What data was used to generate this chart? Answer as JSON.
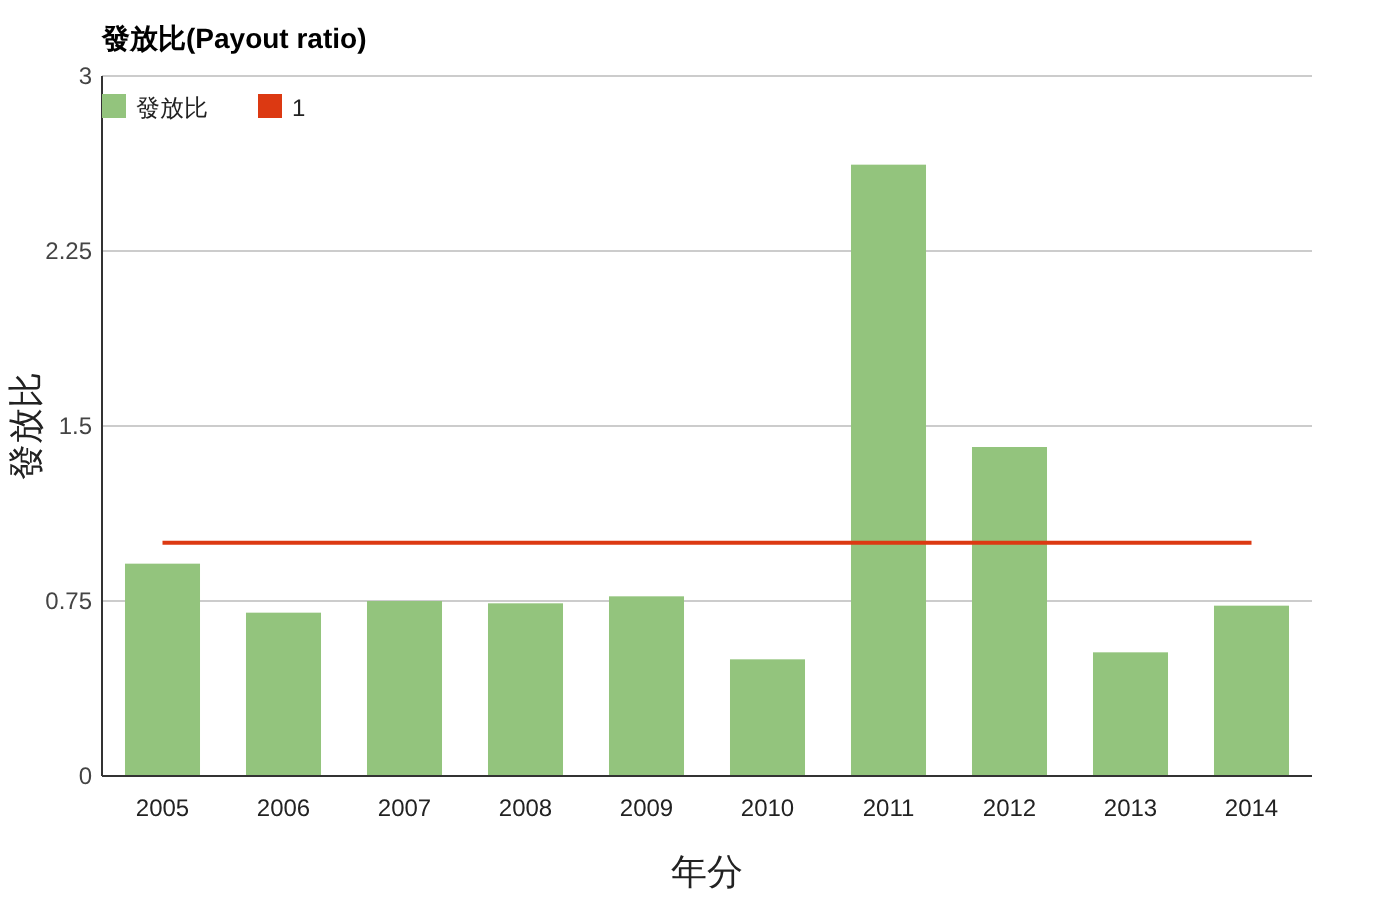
{
  "chart_data": {
    "type": "bar",
    "title": "發放比(Payout ratio)",
    "xlabel": "年分",
    "ylabel": "發放比",
    "categories": [
      "2005",
      "2006",
      "2007",
      "2008",
      "2009",
      "2010",
      "2011",
      "2012",
      "2013",
      "2014"
    ],
    "series": [
      {
        "name": "發放比",
        "color": "#93c47d",
        "values": [
          0.91,
          0.7,
          0.75,
          0.74,
          0.77,
          0.5,
          2.62,
          1.41,
          0.53,
          0.73
        ]
      },
      {
        "name": "1",
        "type": "line",
        "color": "#dc3912",
        "values": [
          1,
          1,
          1,
          1,
          1,
          1,
          1,
          1,
          1,
          1
        ]
      }
    ],
    "ylim": [
      0,
      3
    ],
    "yticks": [
      0,
      0.75,
      1.5,
      2.25,
      3
    ],
    "grid": "y",
    "legend": "top left"
  }
}
